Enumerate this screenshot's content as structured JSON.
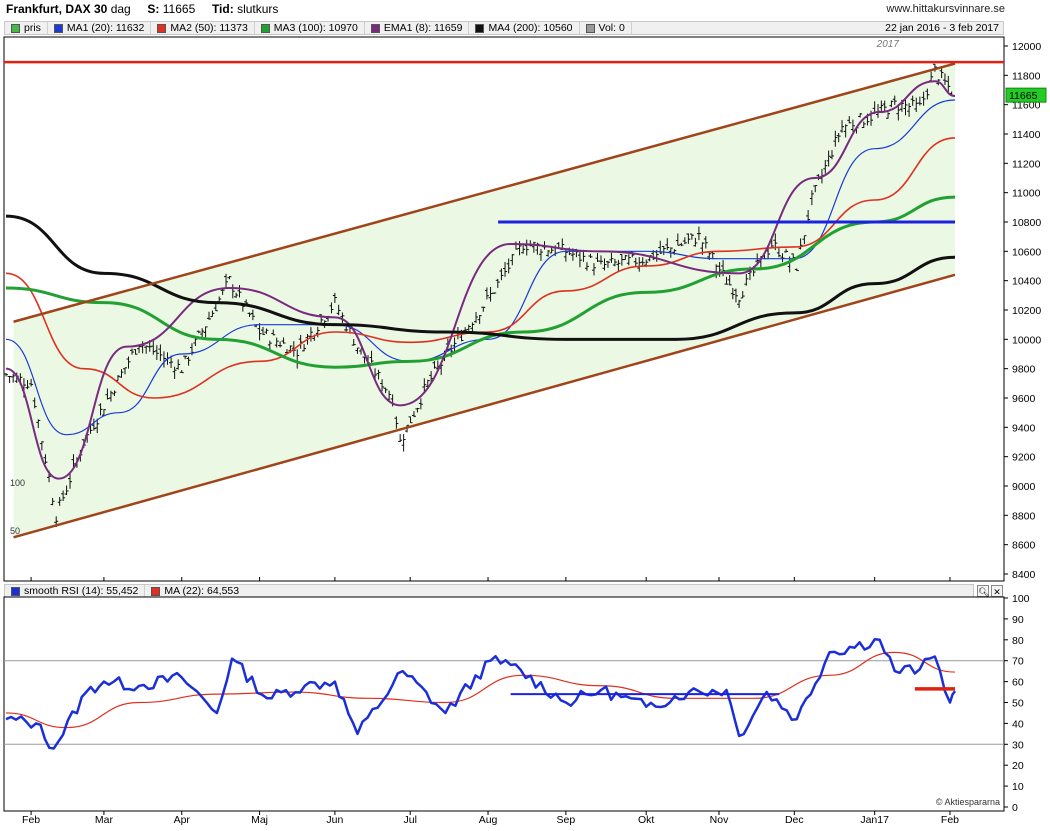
{
  "header": {
    "title": "Frankfurt, DAX 30",
    "period": "dag",
    "last_label": "S:",
    "last_value": "11665",
    "time_label": "Tid:",
    "time_value": "slutkurs",
    "site": "www.hittakursvinnare.se",
    "date_range": "22 jan 2016 - 3 feb 2017"
  },
  "price_legend": [
    {
      "label": "pris",
      "color": "#46b84a"
    },
    {
      "label": "MA1 (20): 11632",
      "color": "#1a3ad6"
    },
    {
      "label": "MA2 (50): 11373",
      "color": "#e03020"
    },
    {
      "label": "MA3 (100): 10970",
      "color": "#22a032"
    },
    {
      "label": "EMA1 (8): 11659",
      "color": "#7a2b80"
    },
    {
      "label": "MA4 (200): 10560",
      "color": "#111111"
    },
    {
      "label": "Vol: 0",
      "color": "#999999"
    }
  ],
  "rsi_legend": [
    {
      "label": "smooth RSI (14): 55,452",
      "color": "#1a2fd8"
    },
    {
      "label": "MA (22): 64,553",
      "color": "#e03020"
    }
  ],
  "watermark": "© Aktiespararna",
  "price_tag": "11665",
  "year_marker": "2017",
  "colors": {
    "price": "#111111",
    "ma20": "#1a3ad6",
    "ma50": "#e03020",
    "ma100": "#22a032",
    "ema8": "#7a2b80",
    "ma200": "#111111",
    "trend_channel": "#a0441a",
    "resistance": "#e02010",
    "support_blue": "#1a22e0",
    "channel_fill": "#eaf8e4",
    "rsi": "#1a2fd8",
    "rsi_ma": "#e03020",
    "grid": "#9a9a9a"
  },
  "chart_data": [
    {
      "type": "line",
      "title": "Frankfurt, DAX 30",
      "x_range": [
        "2016-01-22",
        "2017-02-03"
      ],
      "ylim": [
        8400,
        12000
      ],
      "y_ticks": [
        8400,
        8600,
        8800,
        9000,
        9200,
        9400,
        9600,
        9800,
        10000,
        10200,
        10400,
        10600,
        10800,
        11000,
        11200,
        11400,
        11600,
        11800,
        12000
      ],
      "x_ticks": [
        "Feb",
        "Mar",
        "Apr",
        "Maj",
        "Jun",
        "Jul",
        "Aug",
        "Sep",
        "Okt",
        "Nov",
        "Dec",
        "Jan17",
        "Feb"
      ],
      "volume_ticks": [
        "50",
        "100"
      ],
      "legend_position": "top",
      "grid": true,
      "series": [
        {
          "name": "pris",
          "dates": [
            "2016-01-22",
            "2016-02-01",
            "2016-02-11",
            "2016-02-22",
            "2016-03-01",
            "2016-03-15",
            "2016-04-01",
            "2016-04-20",
            "2016-05-02",
            "2016-05-17",
            "2016-06-01",
            "2016-06-10",
            "2016-06-24",
            "2016-06-27",
            "2016-07-08",
            "2016-07-20",
            "2016-08-02",
            "2016-08-15",
            "2016-09-01",
            "2016-09-15",
            "2016-10-03",
            "2016-10-24",
            "2016-11-04",
            "2016-11-09",
            "2016-11-22",
            "2016-12-02",
            "2016-12-08",
            "2016-12-20",
            "2017-01-02",
            "2017-01-10",
            "2017-01-20",
            "2017-01-26",
            "2017-02-03"
          ],
          "values": [
            9760,
            9700,
            8800,
            9300,
            9550,
            9980,
            9800,
            10400,
            10050,
            9920,
            10250,
            9950,
            9600,
            9300,
            9700,
            10000,
            10300,
            10650,
            10600,
            10500,
            10550,
            10700,
            10400,
            10300,
            10650,
            10500,
            10950,
            11450,
            11530,
            11600,
            11580,
            11830,
            11665
          ]
        },
        {
          "name": "MA1 (20)",
          "dates": [
            "2016-01-22",
            "2016-02-15",
            "2016-03-07",
            "2016-04-01",
            "2016-05-02",
            "2016-06-01",
            "2016-07-01",
            "2016-08-01",
            "2016-09-01",
            "2016-10-03",
            "2016-11-01",
            "2016-12-01",
            "2017-01-02",
            "2017-02-03"
          ],
          "values": [
            10000,
            9350,
            9500,
            9900,
            10100,
            10100,
            9850,
            10000,
            10600,
            10600,
            10550,
            10550,
            11300,
            11632
          ]
        },
        {
          "name": "MA2 (50)",
          "dates": [
            "2016-01-22",
            "2016-02-22",
            "2016-03-21",
            "2016-05-02",
            "2016-06-01",
            "2016-07-01",
            "2016-08-01",
            "2016-09-01",
            "2016-10-03",
            "2016-11-01",
            "2016-12-01",
            "2017-01-02",
            "2017-02-03"
          ],
          "values": [
            10450,
            9800,
            9600,
            9850,
            10050,
            9980,
            10050,
            10330,
            10500,
            10600,
            10630,
            10950,
            11373
          ]
        },
        {
          "name": "MA3 (100)",
          "dates": [
            "2016-01-22",
            "2016-03-01",
            "2016-04-15",
            "2016-06-01",
            "2016-07-01",
            "2016-08-15",
            "2016-10-03",
            "2016-11-15",
            "2017-01-02",
            "2017-02-03"
          ],
          "values": [
            10350,
            10250,
            10000,
            9810,
            9850,
            10050,
            10320,
            10480,
            10800,
            10970
          ]
        },
        {
          "name": "EMA1 (8)",
          "dates": [
            "2016-01-22",
            "2016-02-12",
            "2016-03-10",
            "2016-04-20",
            "2016-06-01",
            "2016-06-27",
            "2016-08-10",
            "2016-09-15",
            "2016-11-09",
            "2016-12-09",
            "2017-01-04",
            "2017-01-26",
            "2017-02-03"
          ],
          "values": [
            9800,
            9050,
            9950,
            10350,
            10150,
            9550,
            10650,
            10600,
            10450,
            11100,
            11550,
            11760,
            11659
          ]
        },
        {
          "name": "MA4 (200)",
          "dates": [
            "2016-01-22",
            "2016-03-01",
            "2016-04-15",
            "2016-06-01",
            "2016-07-15",
            "2016-09-01",
            "2016-10-15",
            "2016-12-01",
            "2017-01-02",
            "2017-02-03"
          ],
          "values": [
            10840,
            10450,
            10250,
            10100,
            10050,
            10000,
            10000,
            10180,
            10380,
            10560
          ]
        }
      ],
      "annotations": [
        {
          "type": "line",
          "name": "upper trend line",
          "points": [
            [
              "2016-01-25",
              10120
            ],
            [
              "2017-02-03",
              11880
            ]
          ]
        },
        {
          "type": "line",
          "name": "lower trend line",
          "points": [
            [
              "2016-01-25",
              8650
            ],
            [
              "2017-02-03",
              10440
            ]
          ]
        },
        {
          "type": "hline",
          "name": "resistance",
          "value": 11890
        },
        {
          "type": "segment",
          "name": "support",
          "value": 10800,
          "from": "2016-08-05",
          "to": "2017-02-03"
        }
      ]
    },
    {
      "type": "line",
      "title": "smooth RSI (14)",
      "ylim": [
        0,
        100
      ],
      "y_ticks": [
        0,
        10,
        20,
        30,
        40,
        50,
        60,
        70,
        80,
        90,
        100
      ],
      "reference_lines": [
        30,
        70
      ],
      "series": [
        {
          "name": "smooth RSI (14)",
          "dates": [
            "2016-01-22",
            "2016-02-03",
            "2016-02-10",
            "2016-02-23",
            "2016-03-01",
            "2016-03-15",
            "2016-04-01",
            "2016-04-15",
            "2016-04-21",
            "2016-05-05",
            "2016-05-20",
            "2016-06-01",
            "2016-06-10",
            "2016-06-28",
            "2016-07-15",
            "2016-08-02",
            "2016-08-10",
            "2016-09-01",
            "2016-09-15",
            "2016-10-03",
            "2016-10-20",
            "2016-11-04",
            "2016-11-09",
            "2016-11-20",
            "2016-12-02",
            "2016-12-15",
            "2017-01-04",
            "2017-01-10",
            "2017-01-20",
            "2017-01-26",
            "2017-02-01",
            "2017-02-03"
          ],
          "values": [
            42,
            40,
            28,
            55,
            60,
            58,
            62,
            45,
            71,
            52,
            58,
            60,
            35,
            65,
            45,
            70,
            68,
            50,
            56,
            48,
            55,
            56,
            34,
            55,
            42,
            74,
            80,
            65,
            66,
            72,
            50,
            55.452
          ]
        },
        {
          "name": "MA (22)",
          "dates": [
            "2016-01-22",
            "2016-02-15",
            "2016-03-15",
            "2016-04-15",
            "2016-05-15",
            "2016-06-15",
            "2016-07-15",
            "2016-08-15",
            "2016-09-15",
            "2016-10-15",
            "2016-11-15",
            "2016-12-15",
            "2017-01-10",
            "2017-02-03"
          ],
          "values": [
            45,
            38,
            50,
            54,
            55,
            52,
            50,
            63,
            58,
            52,
            52,
            63,
            74,
            64.553
          ]
        }
      ],
      "annotations": [
        {
          "type": "segment",
          "name": "blue level",
          "value": 54,
          "from": "2016-08-10",
          "to": "2016-11-25"
        },
        {
          "type": "segment",
          "name": "red level",
          "value": 56.5,
          "from": "2017-01-18",
          "to": "2017-02-03"
        }
      ],
      "x_ticks": [
        "Feb",
        "Mar",
        "Apr",
        "Maj",
        "Jun",
        "Jul",
        "Aug",
        "Sep",
        "Okt",
        "Nov",
        "Dec",
        "Jan17",
        "Feb"
      ]
    }
  ]
}
